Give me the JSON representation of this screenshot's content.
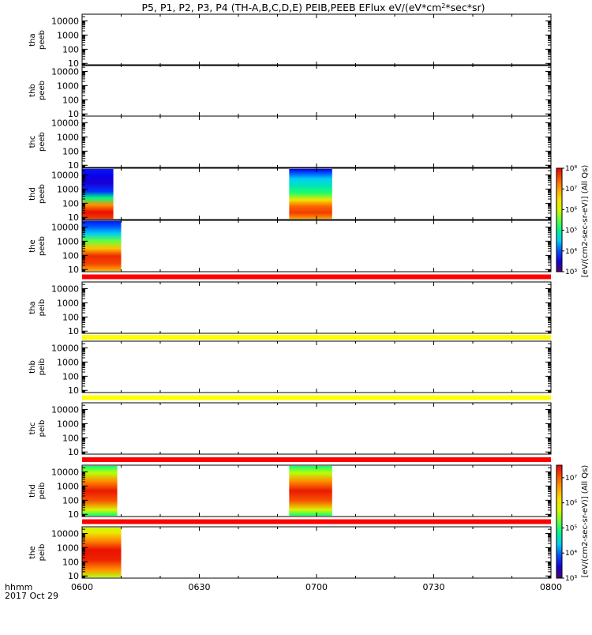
{
  "chart_data": {
    "type": "heatmap",
    "title": "P5, P1, P2, P3, P4 (TH-A,B,C,D,E) PEIB,PEEB EFlux eV/(eV*cm^2*sec*sr)",
    "x_axis": {
      "label_line1": "hhmm",
      "label_line2": "2017 Oct 29",
      "ticks": [
        "0600",
        "0630",
        "0700",
        "0730",
        "0800"
      ],
      "range_minutes": [
        0,
        120
      ]
    },
    "y_axis": {
      "scale": "log",
      "range": [
        7,
        30000
      ],
      "ticks": [
        "10",
        "100",
        "1000",
        "10000"
      ]
    },
    "colorbars": [
      {
        "label": "[eV/(cm2-sec-sr-eV)] (All Qs)",
        "log_range": [
          3,
          8
        ],
        "tick_labels": [
          "10³",
          "10⁴",
          "10⁵",
          "10⁶",
          "10⁷",
          "10⁸"
        ],
        "panels": [
          "thd-peeb",
          "the-peeb"
        ]
      },
      {
        "label": "[eV/(cm2-sec-sr-eV)] (All Qs)",
        "log_range": [
          3,
          7.5
        ],
        "tick_labels": [
          "10³",
          "10⁴",
          "10⁵",
          "10⁶",
          "10⁷"
        ],
        "panels": [
          "thd-peib",
          "the-peib"
        ]
      }
    ],
    "panels": [
      {
        "id": "tha-peeb",
        "label1": "tha",
        "label2": "peeb",
        "segments": [],
        "flag": null
      },
      {
        "id": "thb-peeb",
        "label1": "thb",
        "label2": "peeb",
        "segments": [],
        "flag": null
      },
      {
        "id": "thc-peeb",
        "label1": "thc",
        "label2": "peeb",
        "segments": [],
        "flag": null
      },
      {
        "id": "thd-peeb",
        "label1": "thd",
        "label2": "peeb",
        "segments": [
          {
            "start_min": 0,
            "end_min": 8,
            "profile": "electron"
          },
          {
            "start_min": 53,
            "end_min": 64,
            "profile": "electron_mid"
          }
        ],
        "flag": null
      },
      {
        "id": "the-peeb",
        "label1": "the",
        "label2": "peeb",
        "segments": [
          {
            "start_min": 0,
            "end_min": 10,
            "profile": "electron_warm"
          }
        ],
        "flag": "red"
      },
      {
        "id": "tha-peib",
        "label1": "tha",
        "label2": "peib",
        "segments": [],
        "flag": "yellow"
      },
      {
        "id": "thb-peib",
        "label1": "thb",
        "label2": "peib",
        "segments": [],
        "flag": "yellow"
      },
      {
        "id": "thc-peib",
        "label1": "thc",
        "label2": "peib",
        "segments": [],
        "flag": "red"
      },
      {
        "id": "thd-peib",
        "label1": "thd",
        "label2": "peib",
        "segments": [
          {
            "start_min": 0,
            "end_min": 9,
            "profile": "ion"
          },
          {
            "start_min": 53,
            "end_min": 64,
            "profile": "ion"
          }
        ],
        "flag": "red"
      },
      {
        "id": "the-peib",
        "label1": "the",
        "label2": "peib",
        "segments": [
          {
            "start_min": 0,
            "end_min": 10,
            "profile": "ion_warm"
          }
        ],
        "flag": null
      }
    ],
    "flag_colors": {
      "red": "#ff0000",
      "yellow": "#ffff00"
    }
  }
}
